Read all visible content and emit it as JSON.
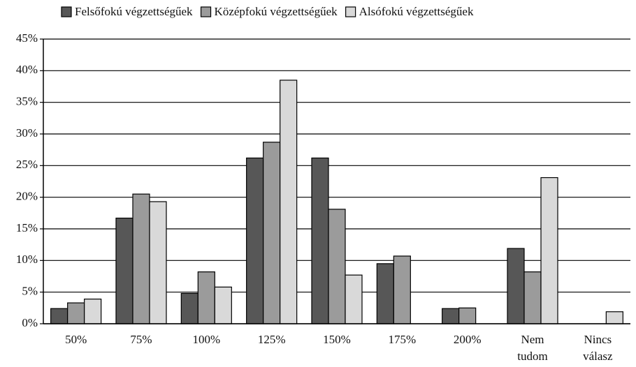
{
  "chart_data": {
    "type": "bar",
    "categories": [
      "50%",
      "75%",
      "100%",
      "125%",
      "150%",
      "175%",
      "200%",
      "Nem tudom",
      "Nincs válasz"
    ],
    "series": [
      {
        "name": "Felsőfokú végzettségűek",
        "color": "#575757",
        "values": [
          2.4,
          16.7,
          4.8,
          26.2,
          26.2,
          9.5,
          2.4,
          11.9,
          0
        ]
      },
      {
        "name": "Középfokú végzettségűek",
        "color": "#9b9b9b",
        "values": [
          3.3,
          20.5,
          8.2,
          28.7,
          18.1,
          10.7,
          2.5,
          8.2,
          0
        ]
      },
      {
        "name": "Alsófokú végzettségűek",
        "color": "#d9d9d9",
        "values": [
          3.9,
          19.3,
          5.8,
          38.5,
          7.7,
          0,
          0,
          23.1,
          1.9
        ]
      }
    ],
    "ylim": [
      0,
      45
    ],
    "yticks": [
      {
        "value": 0,
        "label": "0%"
      },
      {
        "value": 5,
        "label": "5%"
      },
      {
        "value": 10,
        "label": "10%"
      },
      {
        "value": 15,
        "label": "15%"
      },
      {
        "value": 20,
        "label": "20%"
      },
      {
        "value": 25,
        "label": "25%"
      },
      {
        "value": 30,
        "label": "30%"
      },
      {
        "value": 35,
        "label": "35%"
      },
      {
        "value": 40,
        "label": "40%"
      },
      {
        "value": 45,
        "label": "45%"
      }
    ],
    "grid": true,
    "legend": "top"
  }
}
